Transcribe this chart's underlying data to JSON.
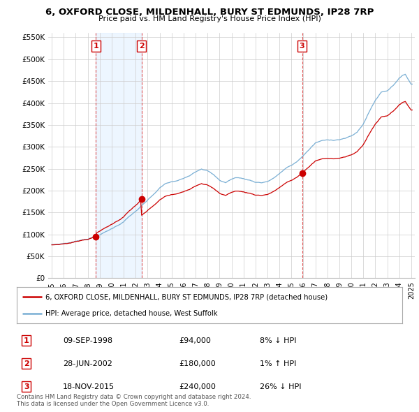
{
  "title": "6, OXFORD CLOSE, MILDENHALL, BURY ST EDMUNDS, IP28 7RP",
  "subtitle": "Price paid vs. HM Land Registry's House Price Index (HPI)",
  "ylim": [
    0,
    560000
  ],
  "yticks": [
    0,
    50000,
    100000,
    150000,
    200000,
    250000,
    300000,
    350000,
    400000,
    450000,
    500000,
    550000
  ],
  "ytick_labels": [
    "£0",
    "£50K",
    "£100K",
    "£150K",
    "£200K",
    "£250K",
    "£300K",
    "£350K",
    "£400K",
    "£450K",
    "£500K",
    "£550K"
  ],
  "xlim_start": 1994.7,
  "xlim_end": 2025.3,
  "sale_years_exact": [
    1998.69,
    2002.49,
    2015.89
  ],
  "sale_prices": [
    94000,
    180000,
    240000
  ],
  "sale_labels": [
    "1",
    "2",
    "3"
  ],
  "legend_line1": "6, OXFORD CLOSE, MILDENHALL, BURY ST EDMUNDS, IP28 7RP (detached house)",
  "legend_line2": "HPI: Average price, detached house, West Suffolk",
  "table": [
    {
      "num": "1",
      "date": "09-SEP-1998",
      "price": "£94,000",
      "hpi": "8% ↓ HPI"
    },
    {
      "num": "2",
      "date": "28-JUN-2002",
      "price": "£180,000",
      "hpi": "1% ↑ HPI"
    },
    {
      "num": "3",
      "date": "18-NOV-2015",
      "price": "£240,000",
      "hpi": "26% ↓ HPI"
    }
  ],
  "footnote": "Contains HM Land Registry data © Crown copyright and database right 2024.\nThis data is licensed under the Open Government Licence v3.0.",
  "red_color": "#cc0000",
  "blue_color": "#7aafd4",
  "blue_fill": "#ddeeff",
  "dashed_color": "#dd4444",
  "bg_color": "#ffffff",
  "grid_color": "#cccccc"
}
